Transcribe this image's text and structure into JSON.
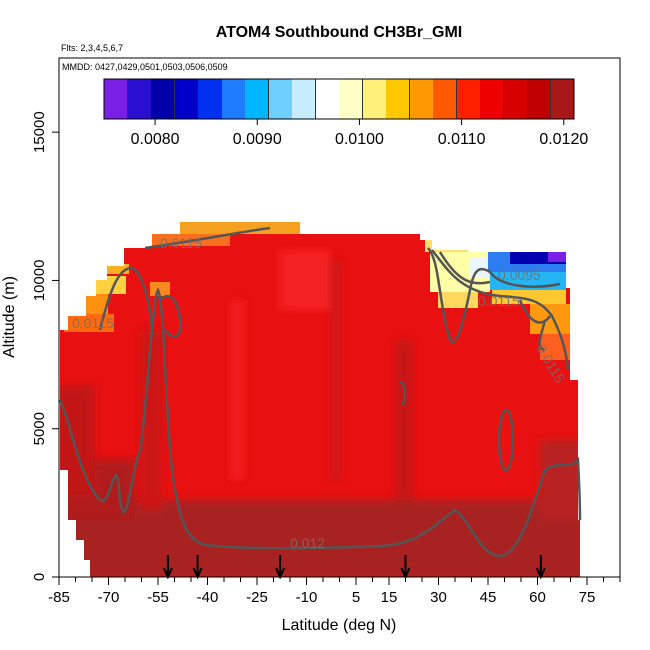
{
  "chart_data": {
    "type": "heatmap",
    "title": "ATOM4 Southbound CH3Br_GMI",
    "subtitle_lines": [
      "Flts: 2,3,4,5,6,7",
      "MMDD: 0427,0429,0501,0503,0506,0509"
    ],
    "xlabel": "Latitude (deg N)",
    "ylabel": "Altitude (m)",
    "xlim": [
      -85,
      85
    ],
    "ylim": [
      0,
      17500
    ],
    "x_ticks": [
      -85,
      -70,
      -55,
      -40,
      -25,
      -10,
      5,
      15,
      30,
      45,
      60,
      75
    ],
    "y_ticks": [
      0,
      5000,
      10000,
      15000
    ],
    "colorbar": {
      "range": [
        0.0075,
        0.0121
      ],
      "ticks": [
        "0.0080",
        "0.0090",
        "0.0100",
        "0.0110",
        "0.0120"
      ],
      "tick_values": [
        0.008,
        0.009,
        0.01,
        0.011,
        0.012
      ],
      "colors": [
        "#7a1fe6",
        "#2b0fd0",
        "#0000a8",
        "#0000c8",
        "#0030f0",
        "#1f7bff",
        "#00b6ff",
        "#6fd0ff",
        "#c7ecff",
        "#ffffff",
        "#ffffc8",
        "#fff07a",
        "#ffc800",
        "#ff9800",
        "#ff5a00",
        "#ff2000",
        "#ee0000",
        "#d60000",
        "#c00000",
        "#a81818"
      ]
    },
    "contour_labels": [
      "0.0115",
      "0.0115",
      "0.0095",
      "0.0115",
      "0.0115",
      "0.012"
    ],
    "profile_arrow_latitudes": [
      -52,
      -43,
      -18,
      20,
      61
    ],
    "data_extent": {
      "lat_range": [
        -85,
        72
      ],
      "max_altitude": 12500
    },
    "value_regions": [
      {
        "latitude": [
          -85,
          72
        ],
        "altitude": [
          0,
          2500
        ],
        "value": 0.012,
        "color": "#a81e1e"
      },
      {
        "latitude": [
          -85,
          72
        ],
        "altitude": [
          2500,
          9000
        ],
        "value": 0.0118,
        "color": "#e01010"
      },
      {
        "latitude": [
          -70,
          -30
        ],
        "altitude": [
          9000,
          12500
        ],
        "value": 0.0115,
        "color": "#f33a1a"
      },
      {
        "latitude": [
          35,
          55
        ],
        "altitude": [
          9500,
          11500
        ],
        "value": 0.01,
        "color": "#ffffb0"
      },
      {
        "latitude": [
          55,
          70
        ],
        "altitude": [
          10000,
          11500
        ],
        "value": 0.0085,
        "color": "#0030e0"
      }
    ]
  }
}
